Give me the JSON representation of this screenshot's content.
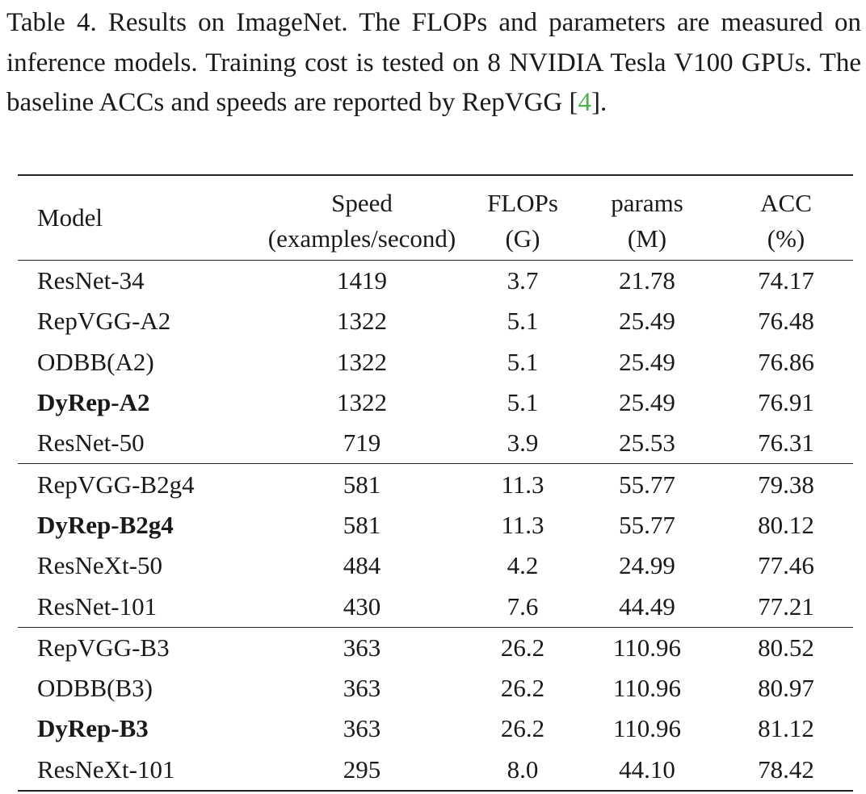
{
  "caption": {
    "prefix": "Table 4.  Results on ImageNet.  The FLOPs and parameters are measured on inference models.  Training cost is tested on 8 NVIDIA Tesla V100 GPUs.  The baseline ACCs and speeds are reported by RepVGG [",
    "cite": "4",
    "suffix": "]."
  },
  "table": {
    "headers": {
      "model": "Model",
      "speed_1": "Speed",
      "speed_2": "(examples/second)",
      "flops_1": "FLOPs",
      "flops_2": "(G)",
      "params_1": "params",
      "params_2": "(M)",
      "acc_1": "ACC",
      "acc_2": "(%)"
    },
    "rows": [
      {
        "model": "ResNet-34",
        "speed": "1419",
        "flops": "3.7",
        "params": "21.78",
        "acc": "74.17"
      },
      {
        "model": "RepVGG-A2",
        "speed": "1322",
        "flops": "5.1",
        "params": "25.49",
        "acc": "76.48"
      },
      {
        "model": "ODBB(A2)",
        "speed": "1322",
        "flops": "5.1",
        "params": "25.49",
        "acc": "76.86"
      },
      {
        "model": "DyRep-A2",
        "speed": "1322",
        "flops": "5.1",
        "params": "25.49",
        "acc": "76.91"
      },
      {
        "model": "ResNet-50",
        "speed": "719",
        "flops": "3.9",
        "params": "25.53",
        "acc": "76.31"
      },
      {
        "model": "RepVGG-B2g4",
        "speed": "581",
        "flops": "11.3",
        "params": "55.77",
        "acc": "79.38"
      },
      {
        "model": "DyRep-B2g4",
        "speed": "581",
        "flops": "11.3",
        "params": "55.77",
        "acc": "80.12"
      },
      {
        "model": "ResNeXt-50",
        "speed": "484",
        "flops": "4.2",
        "params": "24.99",
        "acc": "77.46"
      },
      {
        "model": "ResNet-101",
        "speed": "430",
        "flops": "7.6",
        "params": "44.49",
        "acc": "77.21"
      },
      {
        "model": "RepVGG-B3",
        "speed": "363",
        "flops": "26.2",
        "params": "110.96",
        "acc": "80.52"
      },
      {
        "model": "ODBB(B3)",
        "speed": "363",
        "flops": "26.2",
        "params": "110.96",
        "acc": "80.97"
      },
      {
        "model": "DyRep-B3",
        "speed": "363",
        "flops": "26.2",
        "params": "110.96",
        "acc": "81.12"
      },
      {
        "model": "ResNeXt-101",
        "speed": "295",
        "flops": "8.0",
        "params": "44.10",
        "acc": "78.42"
      }
    ]
  }
}
